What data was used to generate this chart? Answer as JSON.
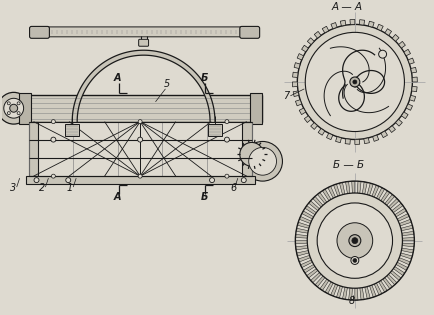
{
  "bg_color": "#dedad0",
  "line_color": "#1a1a1a",
  "gray1": "#aaaaaa",
  "gray2": "#888888",
  "fill_light": "#c8c4b8",
  "fill_medium": "#b8b4a8",
  "figsize": [
    4.34,
    3.15
  ],
  "dpi": 100,
  "labels": {
    "A_A": "A — A",
    "B_B": "Б — Б",
    "num_5": "5",
    "num_7": "7",
    "num_8": "8",
    "num_1": "1",
    "num_2": "2",
    "num_3": "3",
    "num_6": "6",
    "A_up": "A",
    "B_up": "Б"
  }
}
